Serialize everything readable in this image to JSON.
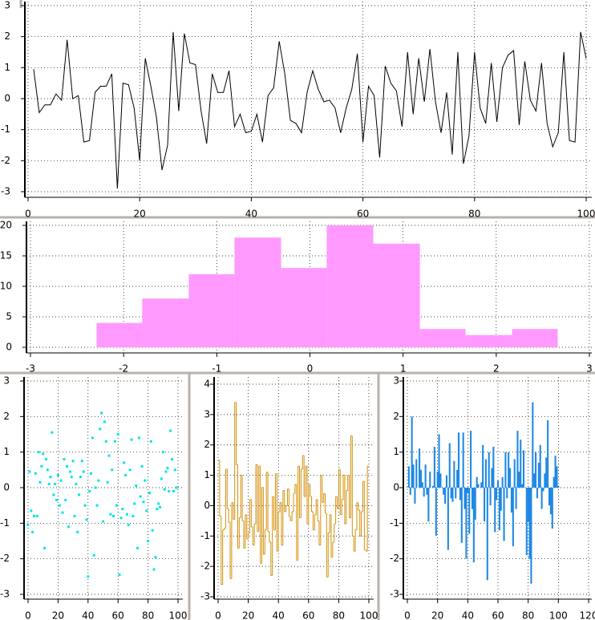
{
  "chart_data": [
    {
      "type": "line",
      "color": "#000000",
      "grid": true,
      "x": [
        1,
        2,
        3,
        4,
        5,
        6,
        7,
        8,
        9,
        10,
        11,
        12,
        13,
        14,
        15,
        16,
        17,
        18,
        19,
        20,
        21,
        22,
        23,
        24,
        25,
        26,
        27,
        28,
        29,
        30,
        31,
        32,
        33,
        34,
        35,
        36,
        37,
        38,
        39,
        40,
        41,
        42,
        43,
        44,
        45,
        46,
        47,
        48,
        49,
        50,
        51,
        52,
        53,
        54,
        55,
        56,
        57,
        58,
        59,
        60,
        61,
        62,
        63,
        64,
        65,
        66,
        67,
        68,
        69,
        70,
        71,
        72,
        73,
        74,
        75,
        76,
        77,
        78,
        79,
        80,
        81,
        82,
        83,
        84,
        85,
        86,
        87,
        88,
        89,
        90,
        91,
        92,
        93,
        94,
        95,
        96,
        97,
        98,
        99,
        100
      ],
      "values": [
        0.95,
        -0.45,
        -0.2,
        -0.2,
        0.15,
        -0.05,
        1.9,
        0,
        0.1,
        -1.4,
        -1.35,
        0.2,
        0.4,
        0.4,
        0.8,
        -2.9,
        0.5,
        0.45,
        -0.3,
        -2.0,
        1.3,
        0.4,
        -0.6,
        -2.3,
        -1.5,
        2.15,
        -0.4,
        2.1,
        1.15,
        1.1,
        -0.4,
        -1.45,
        0.8,
        0.2,
        0.2,
        0.9,
        -0.9,
        -0.5,
        -1.1,
        -1.05,
        -0.5,
        -1.4,
        0.1,
        0.35,
        1.85,
        0.8,
        -0.7,
        -0.8,
        -1.1,
        0.2,
        0.9,
        0.3,
        -0.1,
        -0.05,
        -0.3,
        -1.1,
        -0.3,
        0.3,
        1.45,
        -1.4,
        0.4,
        0.1,
        -1.9,
        1.05,
        0.5,
        0.25,
        -0.9,
        1.5,
        -0.5,
        1.3,
        -0.1,
        1.6,
        -0.1,
        -1.1,
        0.2,
        -1.8,
        1.5,
        -2.1,
        -1.2,
        1.5,
        -0.3,
        -0.8,
        1.15,
        -0.75,
        1.0,
        1.4,
        1.55,
        -0.85,
        1.2,
        -0.05,
        -0.4,
        1.15,
        -0.8,
        -1.55,
        -1.1,
        1.5,
        -1.35,
        -1.4,
        2.15,
        1.3
      ],
      "xlim": [
        0,
        100
      ],
      "ylim": [
        -3,
        3
      ],
      "xticks": [
        0,
        20,
        40,
        60,
        80,
        100
      ],
      "yticks": [
        -3,
        -2,
        -1,
        0,
        1,
        2,
        3
      ]
    },
    {
      "type": "histogram",
      "color": "#ff99ff",
      "grid": true,
      "bins": [
        -2.29,
        -1.8,
        -1.3,
        -0.81,
        -0.31,
        0.18,
        0.68,
        1.18,
        1.67,
        2.17,
        2.66
      ],
      "values": [
        4,
        8,
        12,
        18,
        13,
        20,
        17,
        3,
        2,
        3
      ],
      "xlim": [
        -3,
        3
      ],
      "ylim": [
        0,
        20
      ],
      "xticks": [
        -3,
        -2,
        -1,
        0,
        1,
        2,
        3
      ],
      "yticks": [
        0,
        5,
        10,
        15,
        20
      ]
    },
    {
      "type": "scatter",
      "color": "#00e6e6",
      "grid": true,
      "x": [
        0,
        1,
        2,
        3,
        4,
        5,
        6,
        7,
        8,
        9,
        10,
        11,
        12,
        13,
        14,
        15,
        16,
        17,
        18,
        19,
        20,
        21,
        22,
        23,
        24,
        25,
        26,
        27,
        28,
        29,
        30,
        31,
        32,
        33,
        34,
        35,
        36,
        37,
        38,
        39,
        40,
        41,
        42,
        43,
        44,
        45,
        46,
        47,
        48,
        49,
        50,
        51,
        52,
        53,
        54,
        55,
        56,
        57,
        58,
        59,
        60,
        61,
        62,
        63,
        64,
        65,
        66,
        67,
        68,
        69,
        70,
        71,
        72,
        73,
        74,
        75,
        76,
        77,
        78,
        79,
        80,
        81,
        82,
        83,
        84,
        85,
        86,
        87,
        88,
        89,
        90,
        91,
        92,
        93,
        94,
        95,
        96,
        97,
        98,
        99
      ],
      "values": [
        -1.05,
        0.45,
        -0.65,
        -1.25,
        -0.8,
        0.4,
        -0.8,
        1.0,
        0.15,
        0.6,
        0.95,
        -1.7,
        0.8,
        0.5,
        0.1,
        0.3,
        1.55,
        -0.2,
        0.1,
        -0.35,
        0.35,
        -0.5,
        0.2,
        -0.7,
        0.8,
        -0.35,
        0.6,
        -1.1,
        0.45,
        0.3,
        0.75,
        -0.8,
        0.1,
        -1.25,
        -0.2,
        0.3,
        0.75,
        0.45,
        -0.5,
        -0.9,
        -2.5,
        -0.1,
        0.4,
        1.4,
        -1.9,
        0.0,
        -0.5,
        0.2,
        1.65,
        2.1,
        -0.95,
        1.85,
        1.3,
        0.15,
        0.9,
        -0.75,
        0.5,
        -0.8,
        1.3,
        -0.5,
        1.5,
        -2.45,
        -0.85,
        -0.6,
        0.7,
        0.35,
        -0.75,
        -1.05,
        0.5,
        1.35,
        -0.8,
        -0.45,
        0.05,
        -1.7,
        1.4,
        -0.25,
        0.6,
        -0.4,
        0.2,
        -0.65,
        -1.5,
        -0.15,
        1.3,
        -1.2,
        -2.3,
        -1.95,
        -0.6,
        -0.45,
        -0.55,
        0.25,
        1.0,
        -0.05,
        0.45,
        0.55,
        -0.1,
        1.6,
        0.8,
        -0.1,
        0.5,
        0.0
      ],
      "xlim": [
        0,
        100
      ],
      "ylim": [
        -3,
        3
      ],
      "xticks": [
        0,
        20,
        40,
        60,
        80,
        100
      ],
      "yticks": [
        -3,
        -2,
        -1,
        0,
        1,
        2,
        3
      ]
    },
    {
      "type": "step",
      "color": "#d4900a",
      "grid": true,
      "x": [
        0,
        1,
        2,
        3,
        4,
        5,
        6,
        7,
        8,
        9,
        10,
        11,
        12,
        13,
        14,
        15,
        16,
        17,
        18,
        19,
        20,
        21,
        22,
        23,
        24,
        25,
        26,
        27,
        28,
        29,
        30,
        31,
        32,
        33,
        34,
        35,
        36,
        37,
        38,
        39,
        40,
        41,
        42,
        43,
        44,
        45,
        46,
        47,
        48,
        49,
        50,
        51,
        52,
        53,
        54,
        55,
        56,
        57,
        58,
        59,
        60,
        61,
        62,
        63,
        64,
        65,
        66,
        67,
        68,
        69,
        70,
        71,
        72,
        73,
        74,
        75,
        76,
        77,
        78,
        79,
        80,
        81,
        82,
        83,
        84,
        85,
        86,
        87,
        88,
        89,
        90,
        91,
        92,
        93,
        94,
        95,
        96,
        97,
        98,
        99
      ],
      "values": [
        1.5,
        -0.35,
        -2.6,
        -0.8,
        -0.75,
        1.2,
        -0.1,
        -0.55,
        -2.4,
        0.1,
        -0.45,
        3.4,
        1.35,
        -1.4,
        -0.4,
        1.0,
        -0.5,
        -1.4,
        -0.3,
        -1.1,
        -0.9,
        0.2,
        -0.7,
        -1.3,
        -0.6,
        1.35,
        -0.85,
        1.3,
        -1.9,
        0.6,
        -1.6,
        -0.8,
        1.1,
        -0.85,
        -1.2,
        -2.3,
        0.3,
        -0.8,
        1.05,
        -1.5,
        -0.2,
        0.1,
        -1.3,
        0.5,
        -0.2,
        0.0,
        0.55,
        -0.35,
        -0.5,
        -0.2,
        0.4,
        0.7,
        -1.8,
        1.3,
        -0.4,
        1.2,
        1.65,
        0.3,
        1.3,
        -0.6,
        0.7,
        0.3,
        -0.2,
        -0.8,
        -0.3,
        0.2,
        -0.5,
        -1.3,
        1.0,
        0.1,
        0.4,
        -0.25,
        -2.35,
        -0.9,
        -0.3,
        -1.7,
        -1.2,
        -0.6,
        0.3,
        -0.1,
        1.2,
        -0.3,
        0.2,
        1.0,
        -0.6,
        0.5,
        1.0,
        -0.4,
        2.3,
        -1.0,
        -1.5,
        -0.8,
        0.1,
        -0.15,
        -1.0,
        -0.2,
        0.8,
        -1.45,
        -1.5,
        1.3
      ],
      "xlim": [
        0,
        100
      ],
      "ylim": [
        -3,
        4
      ],
      "xticks": [
        0,
        20,
        40,
        60,
        80,
        100
      ],
      "yticks": [
        -3,
        -2,
        -1,
        0,
        1,
        2,
        3,
        4
      ]
    },
    {
      "type": "bar",
      "color": "#1e88e5",
      "grid": true,
      "x": [
        1,
        2,
        3,
        4,
        5,
        6,
        7,
        8,
        9,
        10,
        11,
        12,
        13,
        14,
        15,
        16,
        17,
        18,
        19,
        20,
        21,
        22,
        23,
        24,
        25,
        26,
        27,
        28,
        29,
        30,
        31,
        32,
        33,
        34,
        35,
        36,
        37,
        38,
        39,
        40,
        41,
        42,
        43,
        44,
        45,
        46,
        47,
        48,
        49,
        50,
        51,
        52,
        53,
        54,
        55,
        56,
        57,
        58,
        59,
        60,
        61,
        62,
        63,
        64,
        65,
        66,
        67,
        68,
        69,
        70,
        71,
        72,
        73,
        74,
        75,
        76,
        77,
        78,
        79,
        80,
        81,
        82,
        83,
        84,
        85,
        86,
        87,
        88,
        89,
        90,
        91,
        92,
        93,
        94,
        95,
        96,
        97,
        98,
        99,
        100
      ],
      "values": [
        0.6,
        -0.2,
        2.0,
        0.65,
        -0.45,
        0.8,
        0.0,
        1.1,
        0.5,
        0.15,
        -0.25,
        0.65,
        -0.2,
        -0.95,
        0.45,
        0.0,
        0.05,
        1.15,
        -1.35,
        0.45,
        1.5,
        0.4,
        0.0,
        -0.2,
        -0.45,
        0.35,
        -1.75,
        1.25,
        -0.3,
        -0.4,
        0.75,
        -0.3,
        0.5,
        1.55,
        -0.35,
        -1.55,
        1.55,
        -0.6,
        -2.0,
        -0.15,
        -1.3,
        1.6,
        -0.6,
        -2.1,
        -0.9,
        0.3,
        0.1,
        0.0,
        0.15,
        1.2,
        -0.95,
        0.8,
        -2.6,
        1.0,
        -0.5,
        0.55,
        1.15,
        -1.25,
        -0.35,
        0.2,
        -1.2,
        -0.65,
        0.3,
        -1.5,
        1.0,
        -0.3,
        1.0,
        0.55,
        -0.7,
        -1.65,
        0.8,
        -0.6,
        1.6,
        0.45,
        1.35,
        0.1,
        1.05,
        0.0,
        -1.9,
        -0.95,
        -2.0,
        -2.7,
        2.4,
        0.4,
        1.0,
        -0.3,
        0.7,
        1.2,
        -0.6,
        -0.1,
        0.4,
        0.85,
        1.9,
        -0.5,
        -0.75,
        -1.15,
        0.3,
        0.9,
        0.6,
        0.05
      ],
      "xlim": [
        0,
        120
      ],
      "ylim": [
        -3,
        3
      ],
      "xticks": [
        0,
        20,
        40,
        60,
        80,
        100,
        120
      ],
      "yticks": [
        -3,
        -2,
        -1,
        0,
        1,
        2,
        3
      ]
    }
  ]
}
